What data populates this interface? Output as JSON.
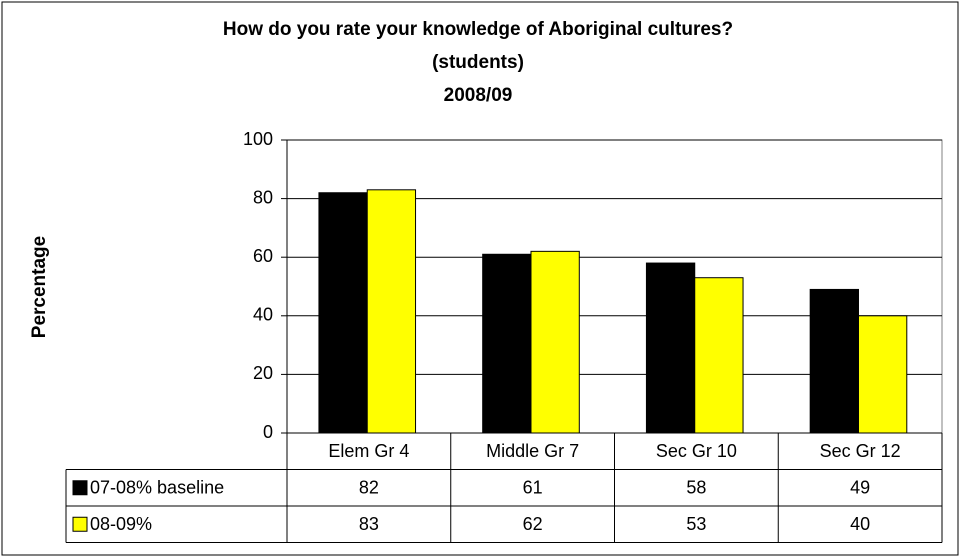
{
  "chart_data": {
    "type": "bar",
    "title": [
      "How do you rate your knowledge of Aboriginal cultures?",
      "(students)",
      "2008/09"
    ],
    "y_label": "Percentage",
    "categories": [
      "Elem Gr 4",
      "Middle Gr 7",
      "Sec Gr 10",
      "Sec Gr 12"
    ],
    "series": [
      {
        "name": "07-08% baseline",
        "color": "#000000",
        "values": [
          82,
          61,
          58,
          49
        ]
      },
      {
        "name": "08-09%",
        "color": "#ffff00",
        "values": [
          83,
          62,
          53,
          40
        ]
      }
    ],
    "ylim": [
      0,
      100
    ],
    "yticks": [
      0,
      20,
      40,
      60,
      80,
      100
    ],
    "grid": true,
    "data_table": true
  }
}
